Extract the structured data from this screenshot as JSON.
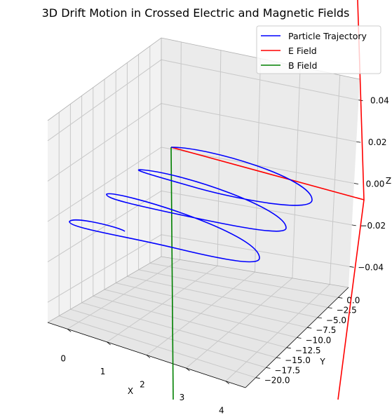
{
  "chart_data": {
    "type": "line",
    "projection": "3d",
    "title": "3D Drift Motion in Crossed Electric and Magnetic Fields",
    "xlabel": "X",
    "ylabel": "Y",
    "zlabel": "Z",
    "xticks": [
      "0",
      "1",
      "2",
      "3",
      "4"
    ],
    "yticks": [
      "0.0",
      "−2.5",
      "−5.0",
      "−7.5",
      "−10.0",
      "−12.5",
      "−15.0",
      "−17.5",
      "−20.0"
    ],
    "zticks": [
      "0.04",
      "0.02",
      "0.00",
      "−0.02",
      "−0.04"
    ],
    "xlim": [
      -0.4,
      4.3
    ],
    "ylim": [
      -21,
      1.5
    ],
    "zlim": [
      -0.055,
      0.055
    ],
    "grid": true,
    "legend_position": "top-right",
    "series": [
      {
        "name": "Particle Trajectory",
        "color": "#0000ff",
        "description_of_path": "spiral drifting toward negative X",
        "x": [
          2.78,
          2.2,
          1.6,
          1.03,
          0.52
        ],
        "y": [
          -2.0,
          -8.0,
          -14.0,
          -18.0,
          -19.0
        ],
        "z": [
          0,
          0,
          0,
          0,
          0
        ]
      },
      {
        "name": "E Field",
        "color": "#ff0000"
      },
      {
        "name": "B Field",
        "color": "#008000"
      }
    ]
  }
}
